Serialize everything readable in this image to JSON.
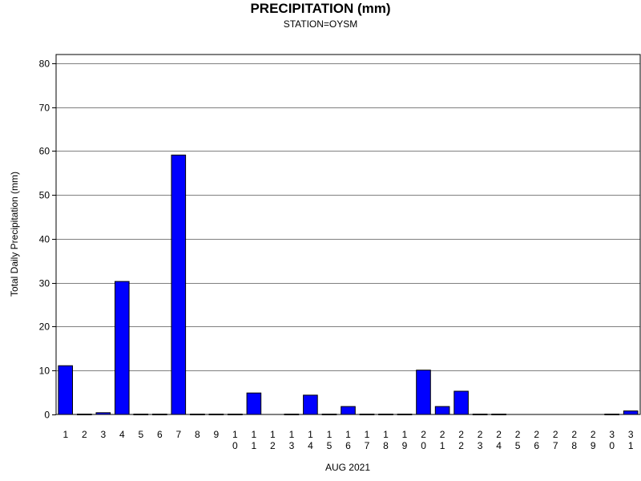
{
  "chart_data": {
    "type": "bar",
    "title": "PRECIPITATION (mm)",
    "subtitle": "STATION=OYSM",
    "xlabel": "AUG 2021",
    "ylabel": "Total Daily Precipitation (mm)",
    "ylim": [
      0,
      80
    ],
    "yticks": [
      0,
      10,
      20,
      30,
      40,
      50,
      60,
      70,
      80
    ],
    "grid": true,
    "bar_color": "#0000ff",
    "categories": [
      "1",
      "2",
      "3",
      "4",
      "5",
      "6",
      "7",
      "8",
      "9",
      "10",
      "11",
      "12",
      "13",
      "14",
      "15",
      "16",
      "17",
      "18",
      "19",
      "20",
      "21",
      "22",
      "23",
      "24",
      "25",
      "26",
      "27",
      "28",
      "29",
      "30",
      "31"
    ],
    "values": [
      11.1,
      0.1,
      0.4,
      30.3,
      0.1,
      0.1,
      59.1,
      0.1,
      0.1,
      0.1,
      4.9,
      null,
      0.1,
      4.4,
      0.1,
      1.8,
      0.1,
      0.1,
      0.1,
      10.1,
      1.8,
      5.3,
      0.1,
      0.1,
      null,
      null,
      null,
      null,
      null,
      0.1,
      0.8
    ]
  }
}
